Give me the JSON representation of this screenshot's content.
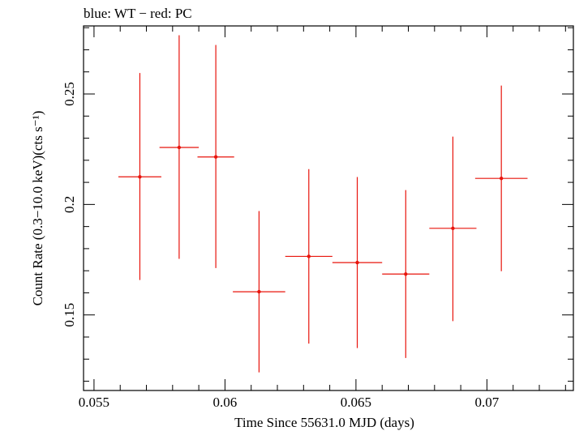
{
  "chart_data": {
    "type": "scatter",
    "title": "blue: WT − red: PC",
    "xlabel": "Time Since 55631.0 MJD (days)",
    "ylabel": "Count Rate (0.3−10.0 keV)(cts s⁻¹)",
    "xlim": [
      0.0546,
      0.0733
    ],
    "ylim": [
      0.1158,
      0.2808
    ],
    "x_ticks": [
      0.055,
      0.06,
      0.065,
      0.07
    ],
    "x_tick_labels": [
      "0.055",
      "0.06",
      "0.065",
      "0.07"
    ],
    "y_ticks": [
      0.15,
      0.2,
      0.25
    ],
    "y_tick_labels": [
      "0.15",
      "0.2",
      "0.25"
    ],
    "grid": false,
    "series": [
      {
        "color": "#e8140c",
        "points": [
          {
            "x": 0.05675,
            "xerr": 0.00082,
            "y": 0.2125,
            "yerr_lo": 0.0467,
            "yerr_hi": 0.047
          },
          {
            "x": 0.05825,
            "xerr": 0.00075,
            "y": 0.2258,
            "yerr_lo": 0.0504,
            "yerr_hi": 0.0508
          },
          {
            "x": 0.05965,
            "xerr": 0.0007,
            "y": 0.2215,
            "yerr_lo": 0.0503,
            "yerr_hi": 0.0507
          },
          {
            "x": 0.0613,
            "xerr": 0.001,
            "y": 0.1605,
            "yerr_lo": 0.0365,
            "yerr_hi": 0.0365
          },
          {
            "x": 0.0632,
            "xerr": 0.0009,
            "y": 0.1765,
            "yerr_lo": 0.0395,
            "yerr_hi": 0.0395
          },
          {
            "x": 0.06505,
            "xerr": 0.00095,
            "y": 0.1737,
            "yerr_lo": 0.0387,
            "yerr_hi": 0.0387
          },
          {
            "x": 0.0669,
            "xerr": 0.0009,
            "y": 0.1685,
            "yerr_lo": 0.038,
            "yerr_hi": 0.038
          },
          {
            "x": 0.0687,
            "xerr": 0.0009,
            "y": 0.1892,
            "yerr_lo": 0.042,
            "yerr_hi": 0.0415
          },
          {
            "x": 0.07055,
            "xerr": 0.001,
            "y": 0.2118,
            "yerr_lo": 0.042,
            "yerr_hi": 0.042
          }
        ]
      }
    ]
  }
}
